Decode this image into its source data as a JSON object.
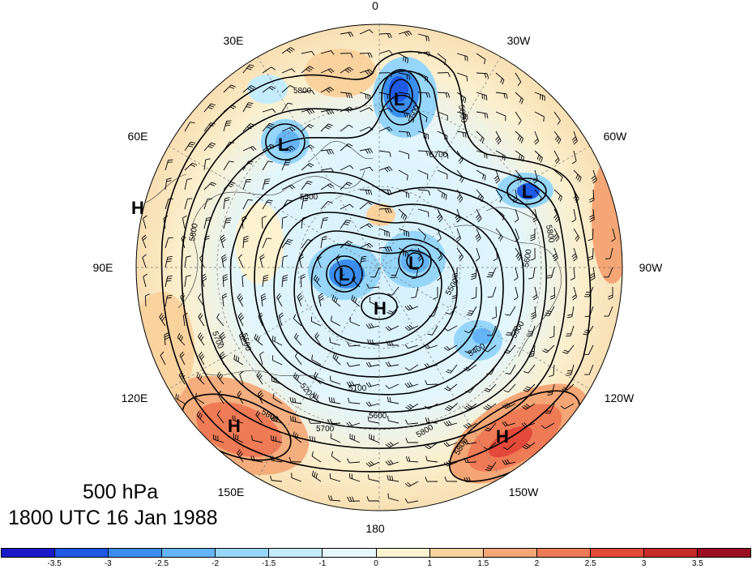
{
  "map": {
    "level": "500 hPa",
    "valid_time": "1800 UTC 16 Jan 1988",
    "longitude_labels": [
      "0",
      "30W",
      "60W",
      "90W",
      "120W",
      "150W",
      "180",
      "150E",
      "120E",
      "90E",
      "60E",
      "30E"
    ],
    "pressure_centers": [
      {
        "type": "H",
        "region": "western Siberia"
      },
      {
        "type": "L",
        "region": "Scandinavia"
      },
      {
        "type": "L",
        "region": "Greenland Sea"
      },
      {
        "type": "L",
        "region": "Labrador"
      },
      {
        "type": "L",
        "region": "Kara Sea"
      },
      {
        "type": "L",
        "region": "Canadian Arctic"
      },
      {
        "type": "H",
        "region": "North Pole"
      },
      {
        "type": "H",
        "region": "Japan"
      },
      {
        "type": "H",
        "region": "Gulf of Alaska"
      }
    ],
    "contour_labels": [
      "5800",
      "5800",
      "5600",
      "5700",
      "5500",
      "5800",
      "5700",
      "5800",
      "5500",
      "5400",
      "5600",
      "5600",
      "5100",
      "5200",
      "5500",
      "5600",
      "5700",
      "5800",
      "5800",
      "5800"
    ]
  },
  "colorbar": {
    "tick_labels": [
      "-3.5",
      "-3",
      "-2.5",
      "-2",
      "-1.5",
      "-1",
      "0",
      "1",
      "1.5",
      "2",
      "2.5",
      "3",
      "3.5"
    ],
    "colors": [
      "#1a1ac8",
      "#1f5ae6",
      "#3a8ef0",
      "#64b4f6",
      "#96d6fa",
      "#c4ecfc",
      "#e6f8fe",
      "#fdf2d0",
      "#f9d29e",
      "#f4a676",
      "#ef7a56",
      "#e34a3a",
      "#c82a2a",
      "#9a0f22"
    ]
  }
}
